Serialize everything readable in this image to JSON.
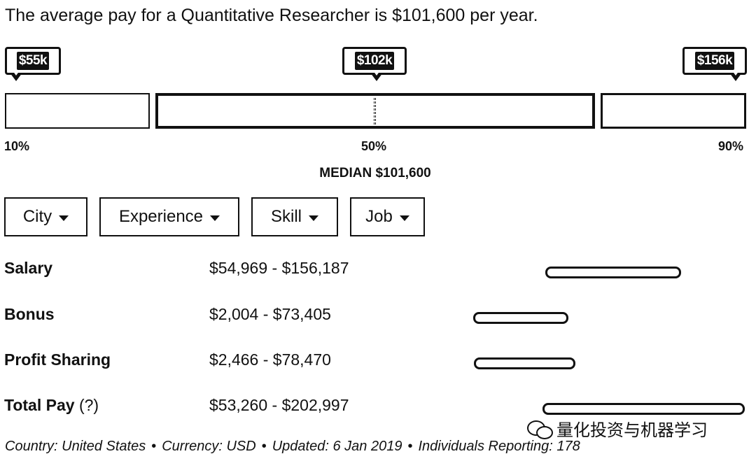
{
  "headline": "The average pay for a Quantitative Researcher is $101,600 per year.",
  "markers": {
    "low": "$55k",
    "median": "$102k",
    "high": "$156k"
  },
  "percentiles": {
    "p10": "10%",
    "p50": "50%",
    "p90": "90%"
  },
  "median_label": "MEDIAN $101,600",
  "filters": [
    "City",
    "Experience",
    "Skill",
    "Job"
  ],
  "rows": [
    {
      "label": "Salary",
      "range": "$54,969 - $156,187"
    },
    {
      "label": "Bonus",
      "range": "$2,004 - $73,405"
    },
    {
      "label": "Profit Sharing",
      "range": "$2,466 - $78,470"
    },
    {
      "label": "Total Pay",
      "label_suffix": "(?)",
      "range": "$53,260 - $202,997"
    }
  ],
  "watermark": "量化投资与机器学习",
  "footer": {
    "country": "Country: United States",
    "currency": "Currency: USD",
    "updated": "Updated: 6 Jan 2019",
    "individuals": "Individuals Reporting: 178",
    "separator": "•"
  }
}
